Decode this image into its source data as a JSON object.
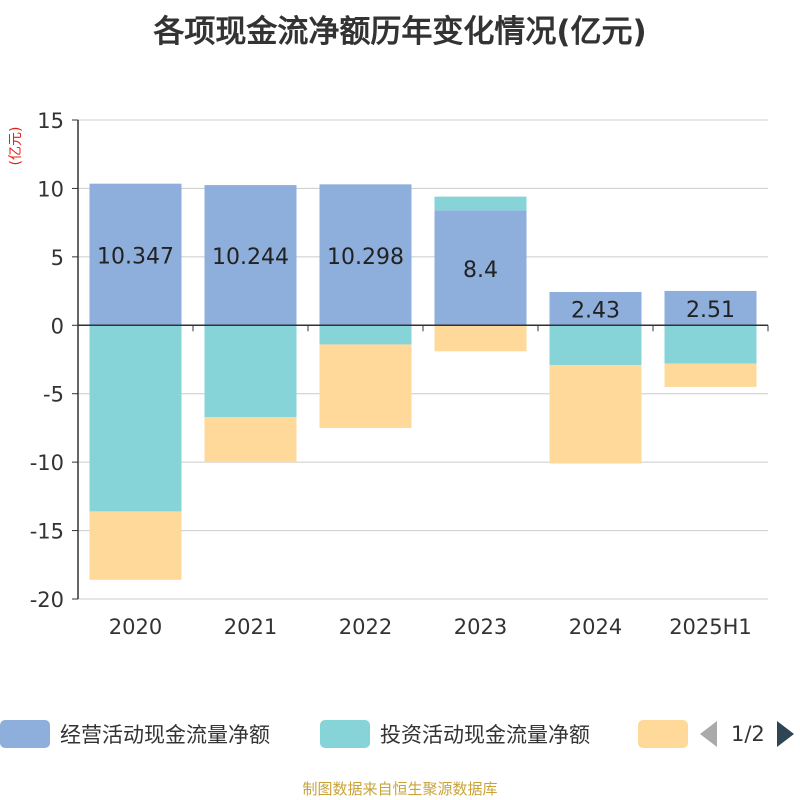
{
  "title": "各项现金流净额历年变化情况(亿元)",
  "unit_label": "(亿元)",
  "source": "制图数据来自恒生聚源数据库",
  "legend": {
    "items": [
      {
        "label": "经营活动现金流量净额",
        "color": "#8eaedb"
      },
      {
        "label": "投资活动现金流量净额",
        "color": "#86d4d8"
      },
      {
        "label": "",
        "color": "#ffd99a"
      }
    ],
    "pager": "1/2"
  },
  "chart_data": {
    "type": "bar",
    "stacked": true,
    "categories": [
      "2020",
      "2021",
      "2022",
      "2023",
      "2024",
      "2025H1"
    ],
    "ylim": [
      -20,
      15
    ],
    "yticks": [
      15,
      10,
      5,
      0,
      -5,
      -10,
      -15,
      -20
    ],
    "ytick_labels": [
      "15",
      "10",
      "5",
      "0",
      "-5",
      "-10",
      "-15",
      "-20"
    ],
    "grid": true,
    "legend_position": "bottom",
    "series": [
      {
        "name": "经营活动现金流量净额",
        "color": "#8eaedb",
        "values": [
          10.347,
          10.244,
          10.298,
          8.4,
          2.43,
          2.51
        ],
        "labels": [
          "10.347",
          "10.244",
          "10.298",
          "8.4",
          "2.43",
          "2.51"
        ]
      },
      {
        "name": "投资活动现金流量净额",
        "color": "#86d4d8",
        "values": [
          -13.6,
          -6.7,
          -1.4,
          1.0,
          -2.9,
          -2.8
        ]
      },
      {
        "name": "",
        "color": "#ffd99a",
        "values": [
          -5.0,
          -3.3,
          -6.1,
          -1.9,
          -7.2,
          -1.7
        ]
      }
    ]
  }
}
